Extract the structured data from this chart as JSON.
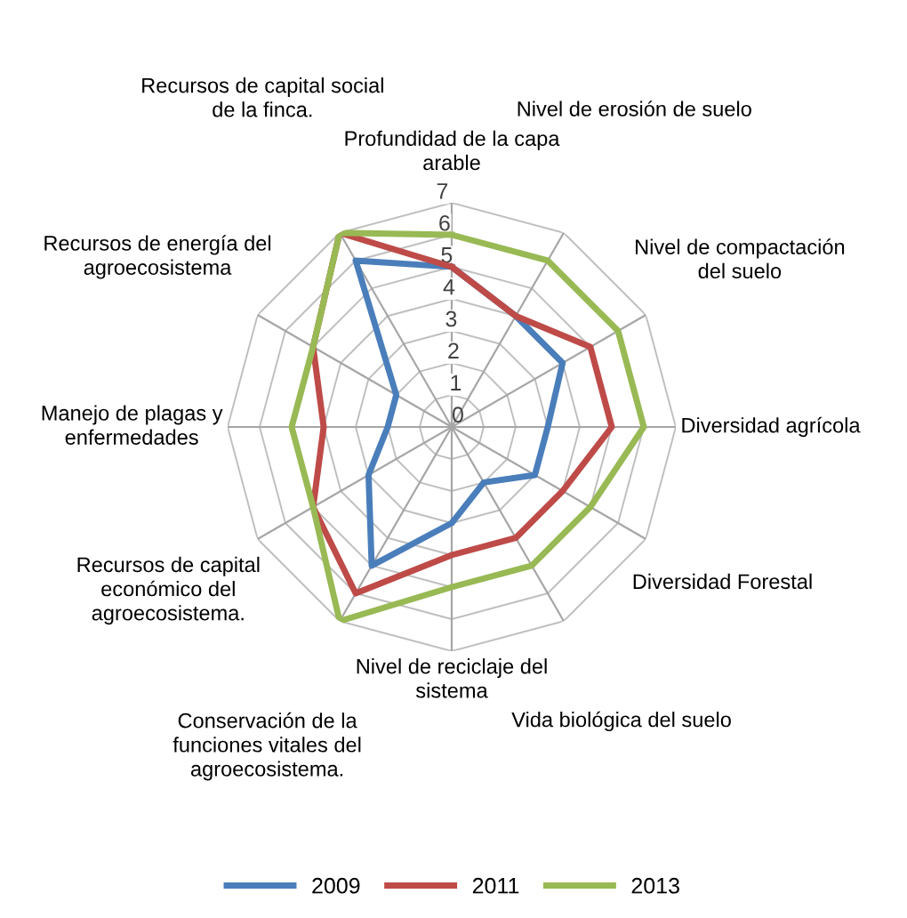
{
  "chart_data": {
    "type": "radar",
    "categories": [
      "Profundidad de la capa\narable",
      "Nivel de erosión de suelo",
      "Nivel de compactación\ndel suelo",
      "Diversidad agrícola",
      "Diversidad Forestal",
      "Vida biológica del suelo",
      "Nivel de reciclaje del\nsistema",
      "Conservación de la\nfunciones vitales del\nagroecosistema.",
      "Recursos de capital\neconómico del\nagroecosistema.",
      "Manejo de plagas y\nenfermedades",
      "Recursos de energía del\nagroecosistema",
      "Recursos de capital social\nde la finca."
    ],
    "series": [
      {
        "name": "2009",
        "color": "#4a7ebb",
        "values": [
          5,
          4,
          4,
          3,
          3,
          2,
          3,
          5,
          3,
          2,
          2,
          6
        ]
      },
      {
        "name": "2011",
        "color": "#be4b48",
        "values": [
          5,
          4,
          5,
          5,
          4,
          4,
          4,
          6,
          5,
          4,
          5,
          7
        ]
      },
      {
        "name": "2013",
        "color": "#98b954",
        "values": [
          6,
          6,
          6,
          6,
          5,
          5,
          5,
          7,
          5,
          5,
          5,
          7
        ]
      }
    ],
    "ylim": [
      0,
      7
    ],
    "yticks": [
      0,
      1,
      2,
      3,
      4,
      5,
      6,
      7
    ],
    "grid": true,
    "legend": "bottom",
    "marker": "none",
    "line_style": "solid"
  }
}
